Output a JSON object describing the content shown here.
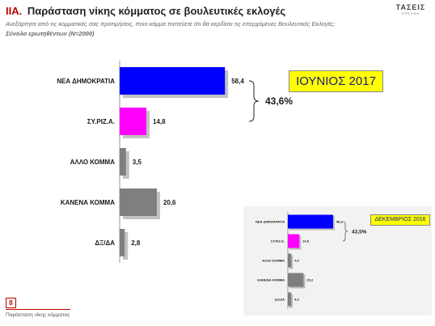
{
  "header": {
    "section_number": "IIA.",
    "title": "Παράσταση νίκης κόμματος σε βουλευτικές εκλογές",
    "question": "Ανεξάρτητα από τις κομματικές σας προτιμήσεις, ποιο κόμμα πιστεύετε ότι θα κερδίσει τις επερχόμενες Βουλευτικές Εκλογές;",
    "base": "Σύνολο ερωτηθέντων (N=2000)"
  },
  "logo": {
    "text": "ΤΑΣΕΙΣ",
    "subtext": "ΕΡΕΥΝΑ"
  },
  "footer": {
    "page": "8",
    "caption": "Παράσταση νίκης κόμματος"
  },
  "colors": {
    "nd": "#0000ff",
    "syriza": "#ff00ff",
    "other": "#7f7f7f",
    "accent": "#c00000",
    "highlight": "#ffff00"
  },
  "chart_data": [
    {
      "type": "bar",
      "orientation": "horizontal",
      "period": "ΙΟΥΝΙΟΣ 2017",
      "categories": [
        "ΝΕΑ ΔΗΜΟΚΡΑΤΙΑ",
        "ΣΥ.ΡΙΖ.Α.",
        "ΑΛΛΟ ΚΟΜΜΑ",
        "ΚΑΝΕΝΑ ΚΟΜΜΑ",
        "ΔΞ/ΔΑ"
      ],
      "values": [
        58.4,
        14.8,
        3.5,
        20.6,
        2.8
      ],
      "labels": [
        "58,4",
        "14,8",
        "3,5",
        "20,6",
        "2,8"
      ],
      "bar_colors": [
        "#0000ff",
        "#ff00ff",
        "#7f7f7f",
        "#7f7f7f",
        "#7f7f7f"
      ],
      "difference_label": "43,6%",
      "xlim": [
        0,
        100
      ]
    },
    {
      "type": "bar",
      "orientation": "horizontal",
      "period": "ΔΕΚΕΜΒΡΙΟΣ 2016",
      "categories": [
        "ΝΕΑ ΔΗΜΟΚΡΑΤΙΑ",
        "ΣΥ.ΡΙΖ.Α.",
        "ΑΛΛΟ ΚΟΜΜΑ",
        "ΚΑΝΕΝΑ ΚΟΜΜΑ",
        "ΔΞ/ΔΑ"
      ],
      "values": [
        58.3,
        14.8,
        4.4,
        20.2,
        4.3
      ],
      "labels": [
        "58,3",
        "14,8",
        "4,4",
        "20,2",
        "4,3"
      ],
      "bar_colors": [
        "#0000ff",
        "#ff00ff",
        "#7f7f7f",
        "#7f7f7f",
        "#7f7f7f"
      ],
      "difference_label": "43,5%",
      "xlim": [
        0,
        100
      ]
    }
  ]
}
